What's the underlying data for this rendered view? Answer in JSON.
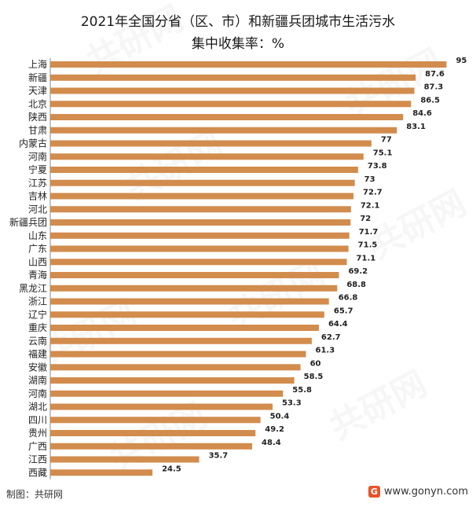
{
  "title_lines": [
    "2021年全国分省（区、市）和新疆兵团城市生活污水",
    "集中收集率：%"
  ],
  "credit": "制图：共研网",
  "website": "www.gonyn.com",
  "logo_letter": "G",
  "watermark_text": "共研网",
  "colors": {
    "bar": "#D28C4D",
    "text": "#222222"
  },
  "chart_data": {
    "type": "bar",
    "orientation": "horizontal",
    "title": "2021年全国分省（区、市）和新疆兵团城市生活污水集中收集率：%",
    "categories": [
      "上海",
      "新疆",
      "天津",
      "北京",
      "陕西",
      "甘肃",
      "内蒙古",
      "河南",
      "宁夏",
      "江苏",
      "吉林",
      "河北",
      "新疆兵团",
      "山东",
      "广东",
      "山西",
      "青海",
      "黑龙江",
      "浙江",
      "辽宁",
      "重庆",
      "云南",
      "福建",
      "安徽",
      "湖南",
      "河南",
      "湖北",
      "四川",
      "贵州",
      "广西",
      "江西",
      "西藏"
    ],
    "values": [
      95,
      87.6,
      87.3,
      86.5,
      84.6,
      83.1,
      77,
      75.1,
      73.8,
      73,
      72.7,
      72.1,
      72,
      71.7,
      71.5,
      71.1,
      69.2,
      68.8,
      66.8,
      65.7,
      64.4,
      62.7,
      61.3,
      60,
      58.5,
      55.8,
      53.3,
      50.4,
      49.2,
      48.4,
      35.7,
      24.5
    ],
    "data_labels": [
      "95",
      "87.6",
      "87.3",
      "86.5",
      "84.6",
      "83.1",
      "77",
      "75.1",
      "73.8",
      "73",
      "72.7",
      "72.1",
      "72",
      "71.7",
      "71.5",
      "71.1",
      "69.2",
      "68.8",
      "66.8",
      "65.7",
      "64.4",
      "62.7",
      "61.3",
      "60",
      "58.5",
      "55.8",
      "53.3",
      "50.4",
      "49.2",
      "48.4",
      "35.7",
      "24.5"
    ],
    "xlim": [
      0,
      100
    ],
    "grid": false,
    "legend": "none"
  }
}
